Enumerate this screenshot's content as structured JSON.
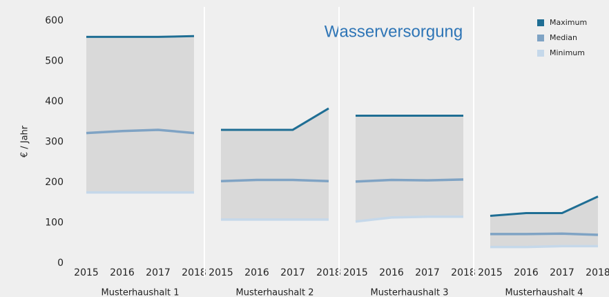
{
  "chart_data": {
    "type": "line",
    "title": "Wasserversorgung",
    "y_label": "€ / Jahr",
    "ylim": [
      0,
      600
    ],
    "yticks": [
      0,
      100,
      200,
      300,
      400,
      500,
      600
    ],
    "series": [
      {
        "name": "Maximum",
        "color": "#1f6e94"
      },
      {
        "name": "Median",
        "color": "#7fa3c4"
      },
      {
        "name": "Minimum",
        "color": "#c5d8ea"
      }
    ],
    "panels": [
      {
        "name": "Musterhaushalt 1",
        "categories": [
          "2015",
          "2016",
          "2017",
          "2018"
        ],
        "series": [
          {
            "values": [
              560,
              560,
              560,
              562
            ]
          },
          {
            "values": [
              322,
              327,
              330,
              322
            ]
          },
          {
            "values": [
              175,
              175,
              175,
              175
            ]
          }
        ]
      },
      {
        "name": "Musterhaushalt 2",
        "categories": [
          "2015",
          "2016",
          "2017",
          "2018"
        ],
        "series": [
          {
            "values": [
              330,
              330,
              330,
              383
            ]
          },
          {
            "values": [
              203,
              206,
              206,
              203
            ]
          },
          {
            "values": [
              108,
              108,
              108,
              108
            ]
          }
        ]
      },
      {
        "name": "Musterhaushalt 3",
        "categories": [
          "2015",
          "2016",
          "2017",
          "2018"
        ],
        "series": [
          {
            "values": [
              365,
              365,
              365,
              365
            ]
          },
          {
            "values": [
              202,
              206,
              205,
              207
            ]
          },
          {
            "values": [
              103,
              113,
              115,
              115
            ]
          }
        ]
      },
      {
        "name": "Musterhaushalt 4",
        "categories": [
          "2015",
          "2016",
          "2017",
          "2018"
        ],
        "series": [
          {
            "values": [
              117,
              124,
              124,
              165
            ]
          },
          {
            "values": [
              72,
              72,
              73,
              70
            ]
          },
          {
            "values": [
              40,
              40,
              42,
              42
            ]
          }
        ]
      }
    ]
  }
}
